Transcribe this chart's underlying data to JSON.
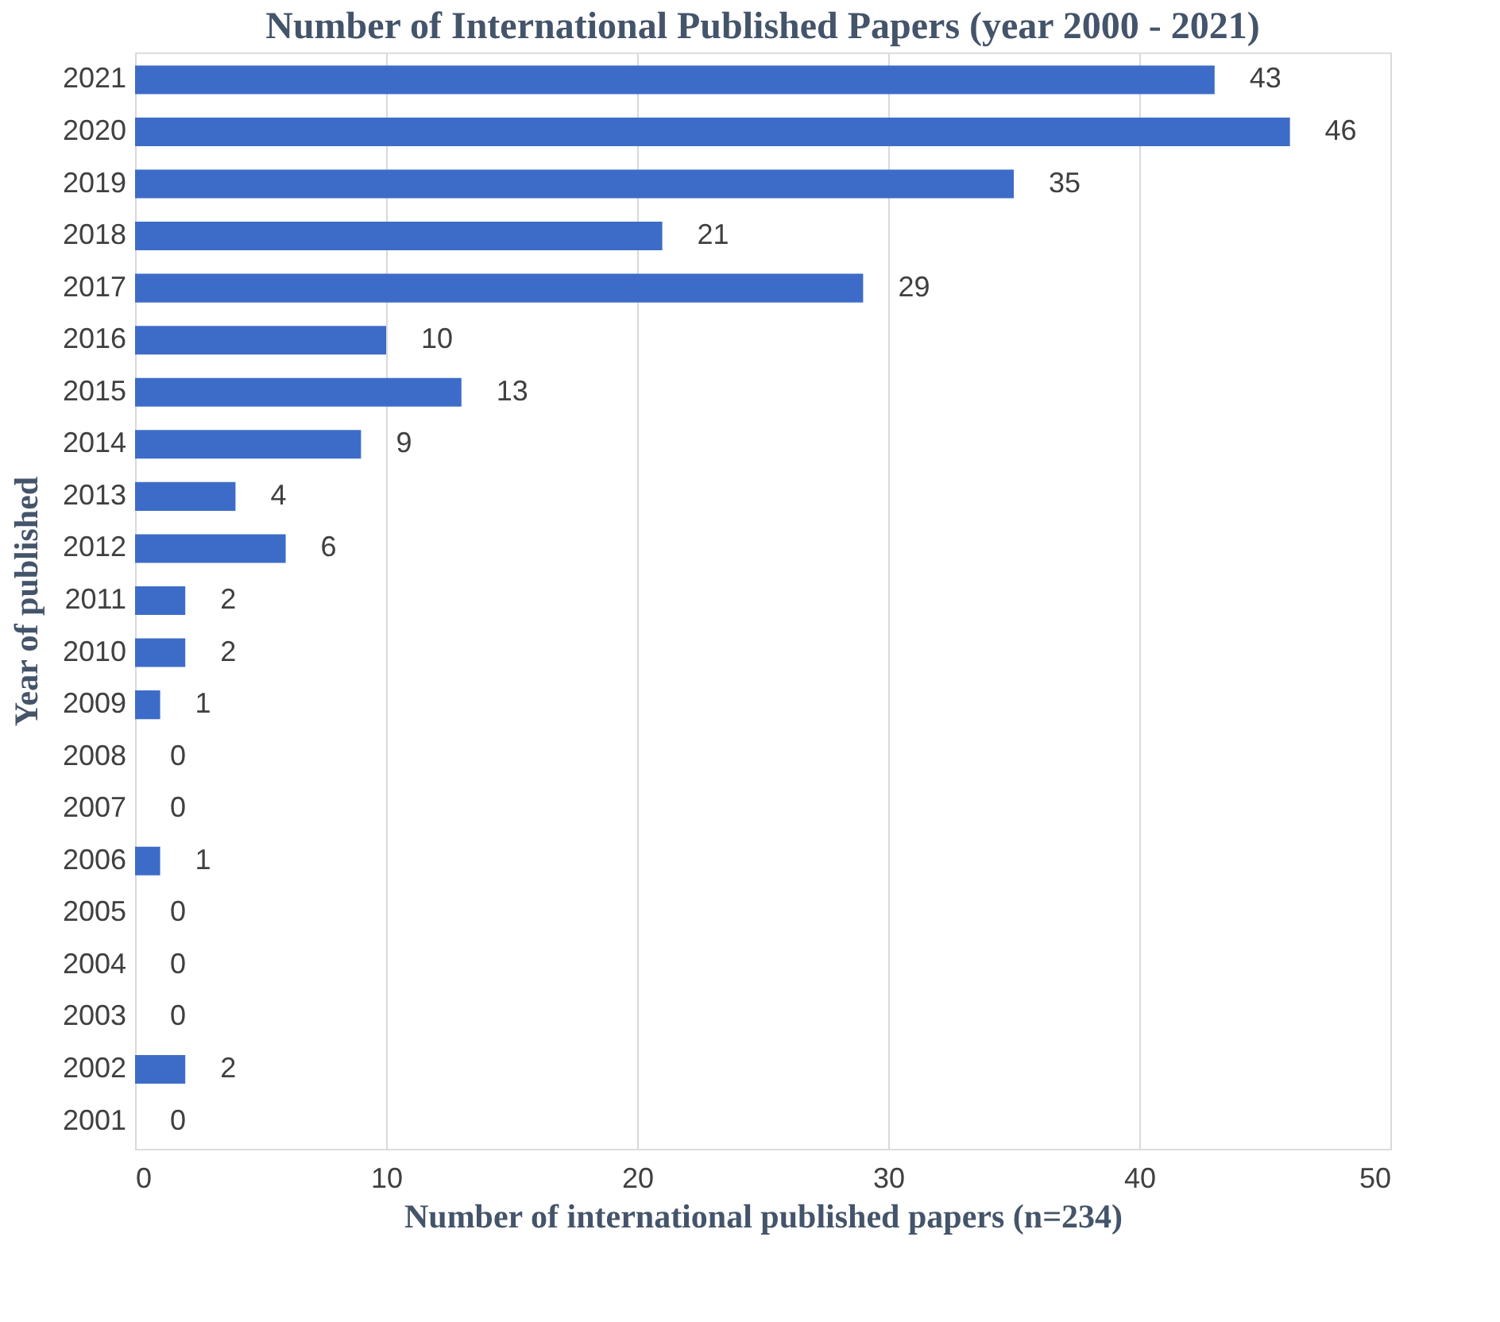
{
  "chart_data": {
    "type": "bar",
    "orientation": "horizontal",
    "title": "Number of International Published Papers (year 2000 - 2021)",
    "xlabel": "Number of international published papers (n=234)",
    "ylabel": "Year of published",
    "categories": [
      "2021",
      "2020",
      "2019",
      "2018",
      "2017",
      "2016",
      "2015",
      "2014",
      "2013",
      "2012",
      "2011",
      "2010",
      "2009",
      "2008",
      "2007",
      "2006",
      "2005",
      "2004",
      "2003",
      "2002",
      "2001"
    ],
    "values": [
      43,
      46,
      35,
      21,
      29,
      10,
      13,
      9,
      4,
      6,
      2,
      2,
      1,
      0,
      0,
      1,
      0,
      0,
      0,
      2,
      0
    ],
    "color": "#3d6cc8",
    "xlim": [
      0,
      50
    ],
    "xticks": [
      0,
      10,
      20,
      30,
      40,
      50
    ],
    "grid": "x",
    "data_labels": true
  }
}
